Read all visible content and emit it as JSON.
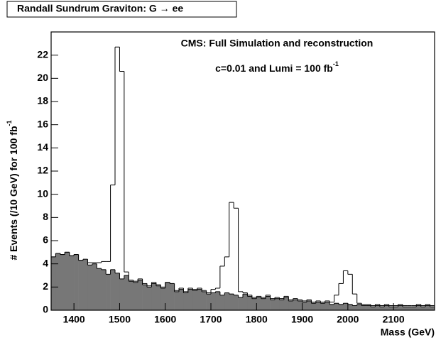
{
  "chart_data": {
    "type": "histogram",
    "title": "Randall Sundrum Graviton: G  → ee",
    "annotations": [
      "CMS: Full Simulation and reconstruction",
      "c=0.01 and Lumi = 100 fb"
    ],
    "annotation_sup": "-1",
    "xlabel": "Mass (GeV)",
    "ylabel": "# Events (/10 GeV) for 100 fb",
    "ylabel_sup": "-1",
    "bins": [
      1350,
      1360,
      1370,
      1380,
      1390,
      1400,
      1410,
      1420,
      1430,
      1440,
      1450,
      1460,
      1470,
      1480,
      1490,
      1500,
      1510,
      1520,
      1530,
      1540,
      1550,
      1560,
      1570,
      1580,
      1590,
      1600,
      1610,
      1620,
      1630,
      1640,
      1650,
      1660,
      1670,
      1680,
      1690,
      1700,
      1710,
      1720,
      1730,
      1740,
      1750,
      1760,
      1770,
      1780,
      1790,
      1800,
      1810,
      1820,
      1830,
      1840,
      1850,
      1860,
      1870,
      1880,
      1890,
      1900,
      1910,
      1920,
      1930,
      1940,
      1950,
      1960,
      1970,
      1980,
      1990,
      2000,
      2010,
      2020,
      2030,
      2040,
      2050,
      2060,
      2070,
      2080,
      2090,
      2100,
      2110,
      2120,
      2130,
      2140,
      2150,
      2160,
      2170,
      2180,
      2190
    ],
    "series": [
      {
        "color": "#000000",
        "style": "outline",
        "values": [
          4.6,
          4.9,
          4.8,
          5.0,
          4.7,
          4.8,
          4.3,
          4.0,
          4.1,
          4.1,
          4.1,
          4.2,
          4.2,
          10.8,
          22.7,
          20.6,
          3.3,
          2.6,
          2.5,
          2.7,
          2.3,
          2.1,
          2.4,
          2.2,
          2.0,
          2.4,
          2.3,
          1.7,
          1.9,
          1.6,
          1.9,
          1.8,
          1.9,
          1.7,
          1.5,
          1.8,
          1.9,
          3.8,
          4.6,
          9.3,
          8.8,
          1.6,
          1.5,
          1.3,
          1.1,
          1.2,
          1.1,
          1.3,
          1.0,
          1.1,
          1.0,
          1.2,
          0.9,
          1.0,
          0.9,
          0.8,
          0.9,
          0.7,
          0.8,
          0.7,
          0.8,
          0.7,
          1.3,
          2.3,
          3.4,
          3.1,
          1.4,
          0.6,
          0.5,
          0.5,
          0.4,
          0.5,
          0.4,
          0.5,
          0.4,
          0.4,
          0.5,
          0.4,
          0.4,
          0.4,
          0.5,
          0.4,
          0.5,
          0.4
        ]
      },
      {
        "color": "#777777",
        "style": "filled",
        "values": [
          4.6,
          4.9,
          4.8,
          5.0,
          4.7,
          4.8,
          4.3,
          4.4,
          3.9,
          4.0,
          3.6,
          3.5,
          3.1,
          3.5,
          3.2,
          2.7,
          3.0,
          2.5,
          2.4,
          2.6,
          2.2,
          2.0,
          2.3,
          2.1,
          1.9,
          2.4,
          2.3,
          1.6,
          1.8,
          1.5,
          1.8,
          1.7,
          1.8,
          1.6,
          1.4,
          1.5,
          1.6,
          1.3,
          1.5,
          1.4,
          1.3,
          1.1,
          1.4,
          1.2,
          1.0,
          1.1,
          1.0,
          1.2,
          0.9,
          1.0,
          0.9,
          1.1,
          0.8,
          0.9,
          0.8,
          0.7,
          0.8,
          0.6,
          0.7,
          0.6,
          0.7,
          0.5,
          0.6,
          0.5,
          0.6,
          0.5,
          0.4,
          0.5,
          0.4,
          0.4,
          0.3,
          0.4,
          0.3,
          0.4,
          0.3,
          0.3,
          0.4,
          0.3,
          0.3,
          0.3,
          0.4,
          0.3,
          0.4,
          0.3
        ]
      }
    ],
    "xlim": [
      1350,
      2190
    ],
    "xticks": [
      1400,
      1500,
      1600,
      1700,
      1800,
      1900,
      2000,
      2100
    ],
    "ylim": [
      0,
      24
    ],
    "yticks": [
      0,
      2,
      4,
      6,
      8,
      10,
      12,
      14,
      16,
      18,
      20,
      22
    ]
  }
}
